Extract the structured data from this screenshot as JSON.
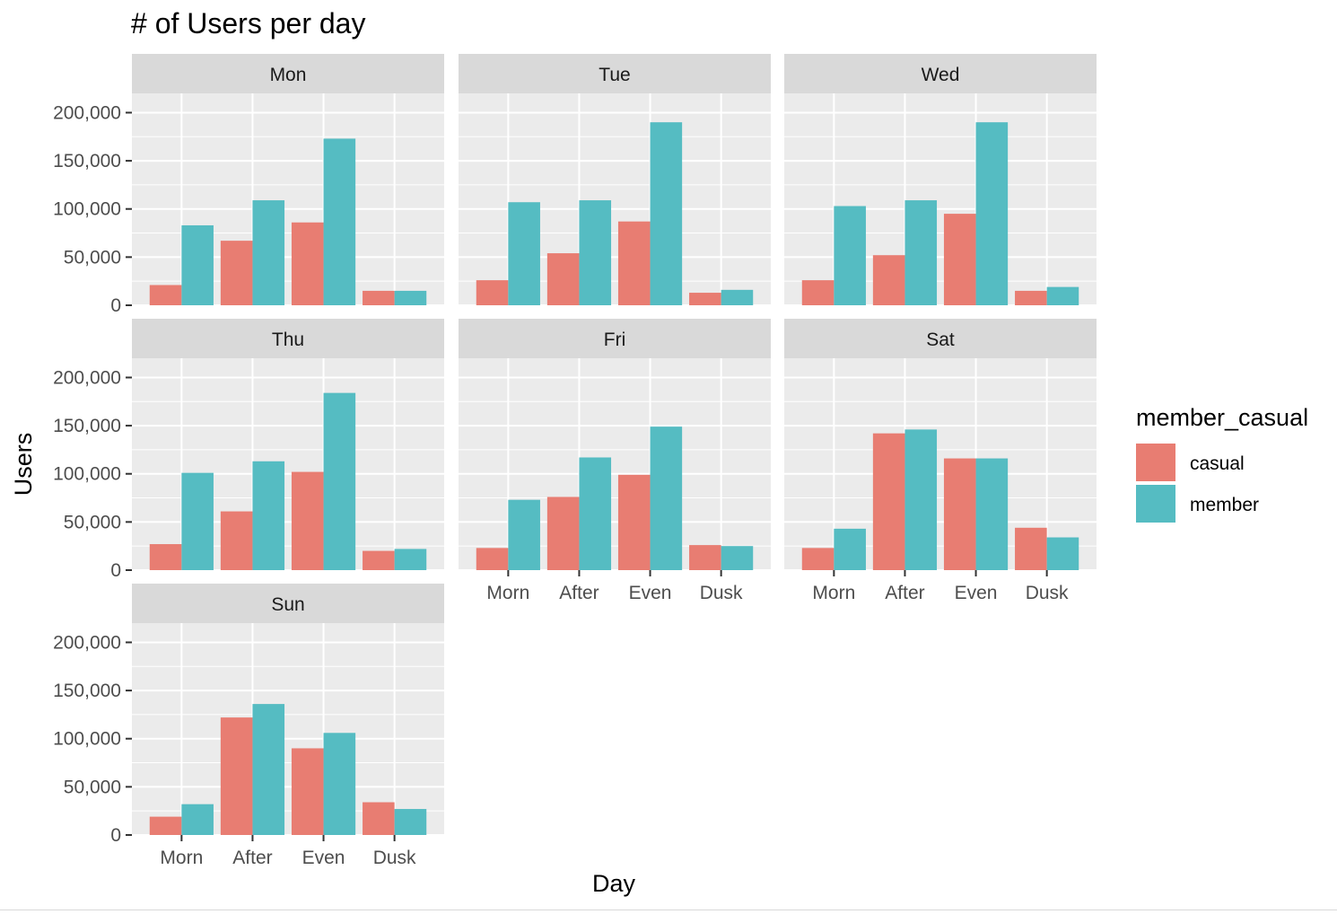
{
  "chart_data": {
    "type": "bar",
    "title": "# of Users per day",
    "xlabel": "Day",
    "ylabel": "Users",
    "categories": [
      "Morn",
      "After",
      "Even",
      "Dusk"
    ],
    "y_ticks": [
      0,
      50000,
      100000,
      150000,
      200000
    ],
    "y_tick_labels": [
      "0",
      "50,000",
      "100,000",
      "150,000",
      "200,000"
    ],
    "ylim": [
      0,
      220000
    ],
    "grid": true,
    "legend": {
      "title": "member_casual",
      "position": "right",
      "entries": [
        {
          "name": "casual",
          "color": "#E87D72"
        },
        {
          "name": "member",
          "color": "#55BCC2"
        }
      ]
    },
    "panels": [
      {
        "name": "Mon",
        "series": [
          {
            "name": "casual",
            "values": [
              21000,
              67000,
              86000,
              15000
            ]
          },
          {
            "name": "member",
            "values": [
              83000,
              109000,
              173000,
              15000
            ]
          }
        ]
      },
      {
        "name": "Tue",
        "series": [
          {
            "name": "casual",
            "values": [
              26000,
              54000,
              87000,
              13000
            ]
          },
          {
            "name": "member",
            "values": [
              107000,
              109000,
              190000,
              16000
            ]
          }
        ]
      },
      {
        "name": "Wed",
        "series": [
          {
            "name": "casual",
            "values": [
              26000,
              52000,
              95000,
              15000
            ]
          },
          {
            "name": "member",
            "values": [
              103000,
              109000,
              190000,
              19000
            ]
          }
        ]
      },
      {
        "name": "Thu",
        "series": [
          {
            "name": "casual",
            "values": [
              27000,
              61000,
              102000,
              20000
            ]
          },
          {
            "name": "member",
            "values": [
              101000,
              113000,
              184000,
              22000
            ]
          }
        ]
      },
      {
        "name": "Fri",
        "series": [
          {
            "name": "casual",
            "values": [
              23000,
              76000,
              99000,
              26000
            ]
          },
          {
            "name": "member",
            "values": [
              73000,
              117000,
              149000,
              25000
            ]
          }
        ]
      },
      {
        "name": "Sat",
        "series": [
          {
            "name": "casual",
            "values": [
              23000,
              142000,
              116000,
              44000
            ]
          },
          {
            "name": "member",
            "values": [
              43000,
              146000,
              116000,
              34000
            ]
          }
        ]
      },
      {
        "name": "Sun",
        "series": [
          {
            "name": "casual",
            "values": [
              19000,
              122000,
              90000,
              34000
            ]
          },
          {
            "name": "member",
            "values": [
              32000,
              136000,
              106000,
              27000
            ]
          }
        ]
      }
    ]
  }
}
